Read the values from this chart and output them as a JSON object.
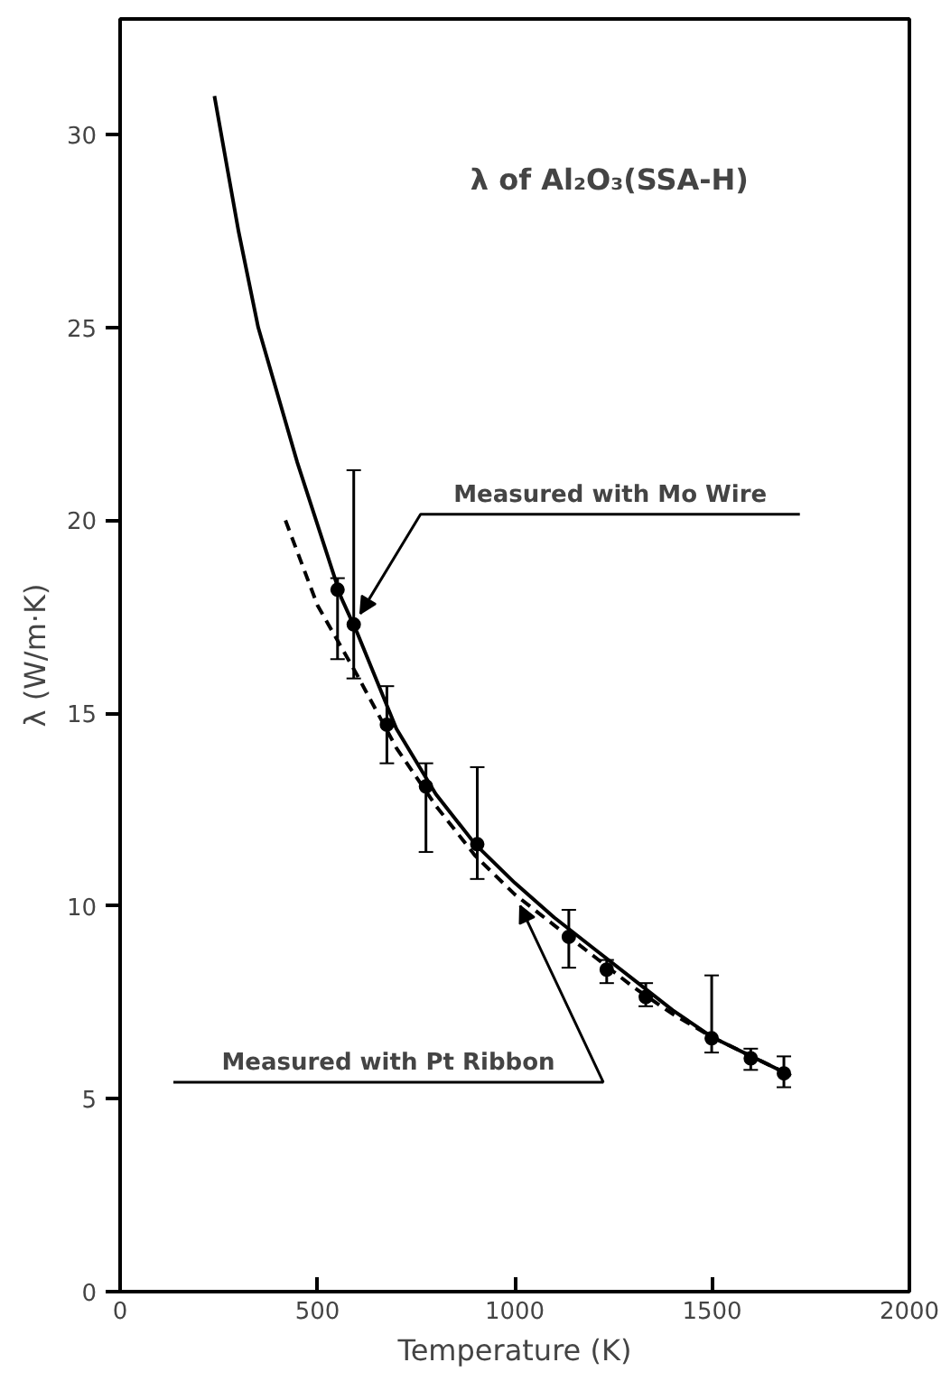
{
  "chart_data": {
    "type": "line",
    "title": "λ of Al₂O₃(SSA-H)",
    "xlabel": "Temperature (K)",
    "ylabel": "λ (W/m·K)",
    "xlim": [
      0,
      2000
    ],
    "ylim": [
      0,
      33
    ],
    "xticks": [
      0,
      500,
      1000,
      1500,
      2000
    ],
    "yticks": [
      0,
      5,
      10,
      15,
      20,
      25,
      30
    ],
    "grid": false,
    "series": [
      {
        "type": "scatter",
        "color": "#000000",
        "marker": "circle",
        "x": [
          551,
          592,
          676,
          775,
          905,
          1137,
          1233,
          1332,
          1499,
          1598,
          1682
        ],
        "values": [
          18.2,
          17.3,
          14.7,
          13.1,
          11.6,
          9.2,
          8.35,
          7.64,
          6.57,
          6.05,
          5.66
        ],
        "errors": [
          [
            16.4,
            18.5
          ],
          [
            15.9,
            21.3
          ],
          [
            13.7,
            15.7
          ],
          [
            11.4,
            13.7
          ],
          [
            10.7,
            13.6
          ],
          [
            8.4,
            9.9
          ],
          [
            8.0,
            8.6
          ],
          [
            7.4,
            8.0
          ],
          [
            6.2,
            8.2
          ],
          [
            5.75,
            6.3
          ],
          [
            5.3,
            6.1
          ]
        ]
      },
      {
        "color": "#000000",
        "line_style": "solid",
        "x": [
          239,
          300,
          350,
          449,
          560,
          600,
          700,
          800,
          900,
          1000,
          1100,
          1200,
          1300,
          1400,
          1500,
          1600,
          1700
        ],
        "values": [
          31.0,
          27.5,
          25.0,
          21.5,
          18.0,
          17.1,
          14.6,
          12.9,
          11.6,
          10.6,
          9.7,
          8.9,
          8.1,
          7.3,
          6.6,
          6.1,
          5.6
        ]
      },
      {
        "color": "#000000",
        "line_style": "dashed",
        "x": [
          419,
          500,
          600,
          700,
          800,
          900,
          1000,
          1100,
          1200,
          1300,
          1400,
          1500,
          1600,
          1700
        ],
        "values": [
          20.0,
          17.8,
          16.0,
          14.1,
          12.6,
          11.3,
          10.3,
          9.5,
          8.7,
          7.9,
          7.2,
          6.6,
          6.1,
          5.6
        ]
      }
    ],
    "annotations": [
      "Measured with Mo Wire",
      "Measured with Pt Ribbon"
    ]
  }
}
